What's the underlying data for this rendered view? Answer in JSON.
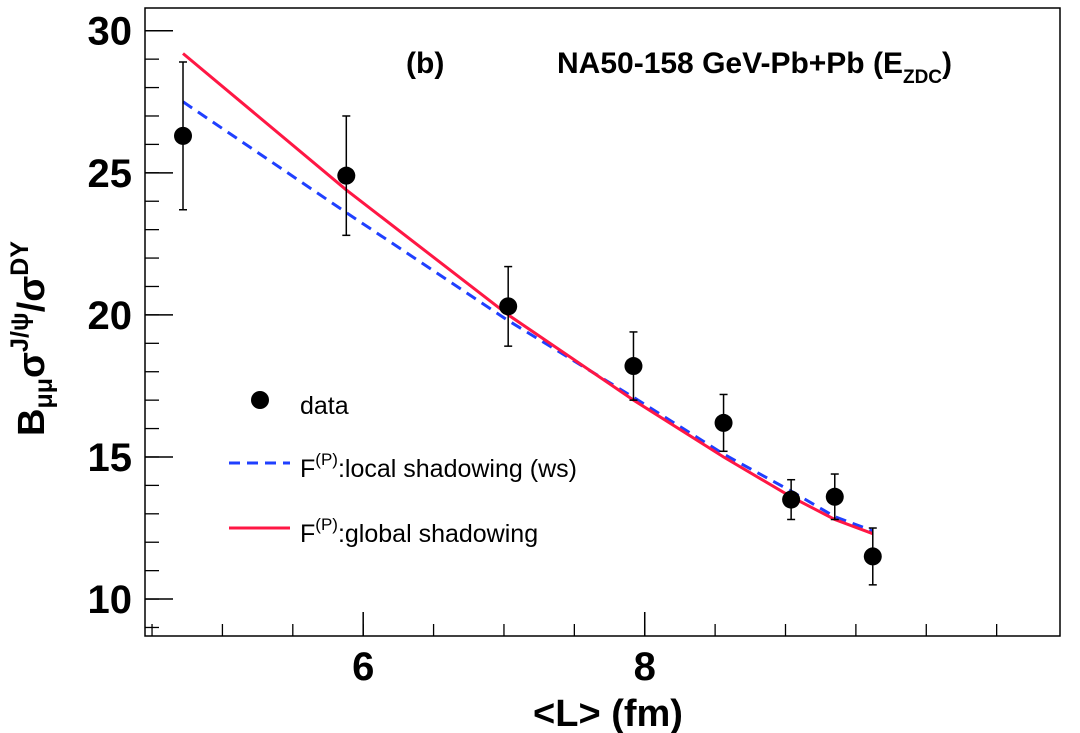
{
  "chart_data": {
    "type": "scatter",
    "panel_label": "(b)",
    "title": {
      "main": "NA50-158 GeV-Pb+Pb (E",
      "sub": "ZDC",
      "close": ")"
    },
    "xlabel": "<L> (fm)",
    "ylabel": {
      "b": "B",
      "b_sub": "μμ",
      "sigma1": "σ",
      "sup1": "J/ψ",
      "slash": "/",
      "sigma2": "σ",
      "sup2": "DY"
    },
    "xlim": [
      4.45,
      10.95
    ],
    "ylim": [
      8.7,
      30.8
    ],
    "x_ticks": [
      {
        "value": 6,
        "label": "6"
      },
      {
        "value": 8,
        "label": "8"
      }
    ],
    "y_ticks": [
      {
        "value": 10,
        "label": "10"
      },
      {
        "value": 15,
        "label": "15"
      },
      {
        "value": 20,
        "label": "20"
      },
      {
        "value": 25,
        "label": "25"
      },
      {
        "value": 30,
        "label": "30"
      }
    ],
    "x_minor_step": 0.5,
    "y_minor_step": 1,
    "series": [
      {
        "name": "data",
        "kind": "points",
        "color": "#000000",
        "points": [
          {
            "x": 4.72,
            "y": 26.3,
            "err": 2.6
          },
          {
            "x": 5.88,
            "y": 24.9,
            "err": 2.1
          },
          {
            "x": 7.03,
            "y": 20.3,
            "err": 1.4
          },
          {
            "x": 7.92,
            "y": 18.2,
            "err": 1.2
          },
          {
            "x": 8.56,
            "y": 16.2,
            "err": 1.0
          },
          {
            "x": 9.04,
            "y": 13.5,
            "err": 0.7
          },
          {
            "x": 9.35,
            "y": 13.6,
            "err": 0.8
          },
          {
            "x": 9.62,
            "y": 11.5,
            "err": 1.0
          }
        ]
      },
      {
        "name": "local shadowing (ws)",
        "kind": "line",
        "style": "dashed",
        "color": "#1f3fff",
        "x": [
          4.72,
          5.88,
          7.03,
          7.92,
          8.56,
          9.04,
          9.35,
          9.62
        ],
        "y": [
          27.5,
          23.6,
          19.8,
          17.1,
          15.1,
          13.8,
          12.9,
          12.4
        ]
      },
      {
        "name": "global shadowing",
        "kind": "line",
        "style": "solid",
        "color": "#ff1744",
        "x": [
          4.72,
          5.88,
          7.03,
          7.92,
          8.56,
          9.04,
          9.35,
          9.62
        ],
        "y": [
          29.2,
          24.4,
          20.0,
          17.0,
          15.0,
          13.6,
          12.8,
          12.3
        ]
      }
    ],
    "legend": {
      "position": "bottom-left",
      "items": [
        {
          "series": 0,
          "text": "data"
        },
        {
          "series": 1,
          "prefix": "F",
          "sup": "(P)",
          "text": ":local shadowing (ws)"
        },
        {
          "series": 2,
          "prefix": "F",
          "sup": "(P)",
          "text": ":global shadowing"
        }
      ]
    }
  }
}
